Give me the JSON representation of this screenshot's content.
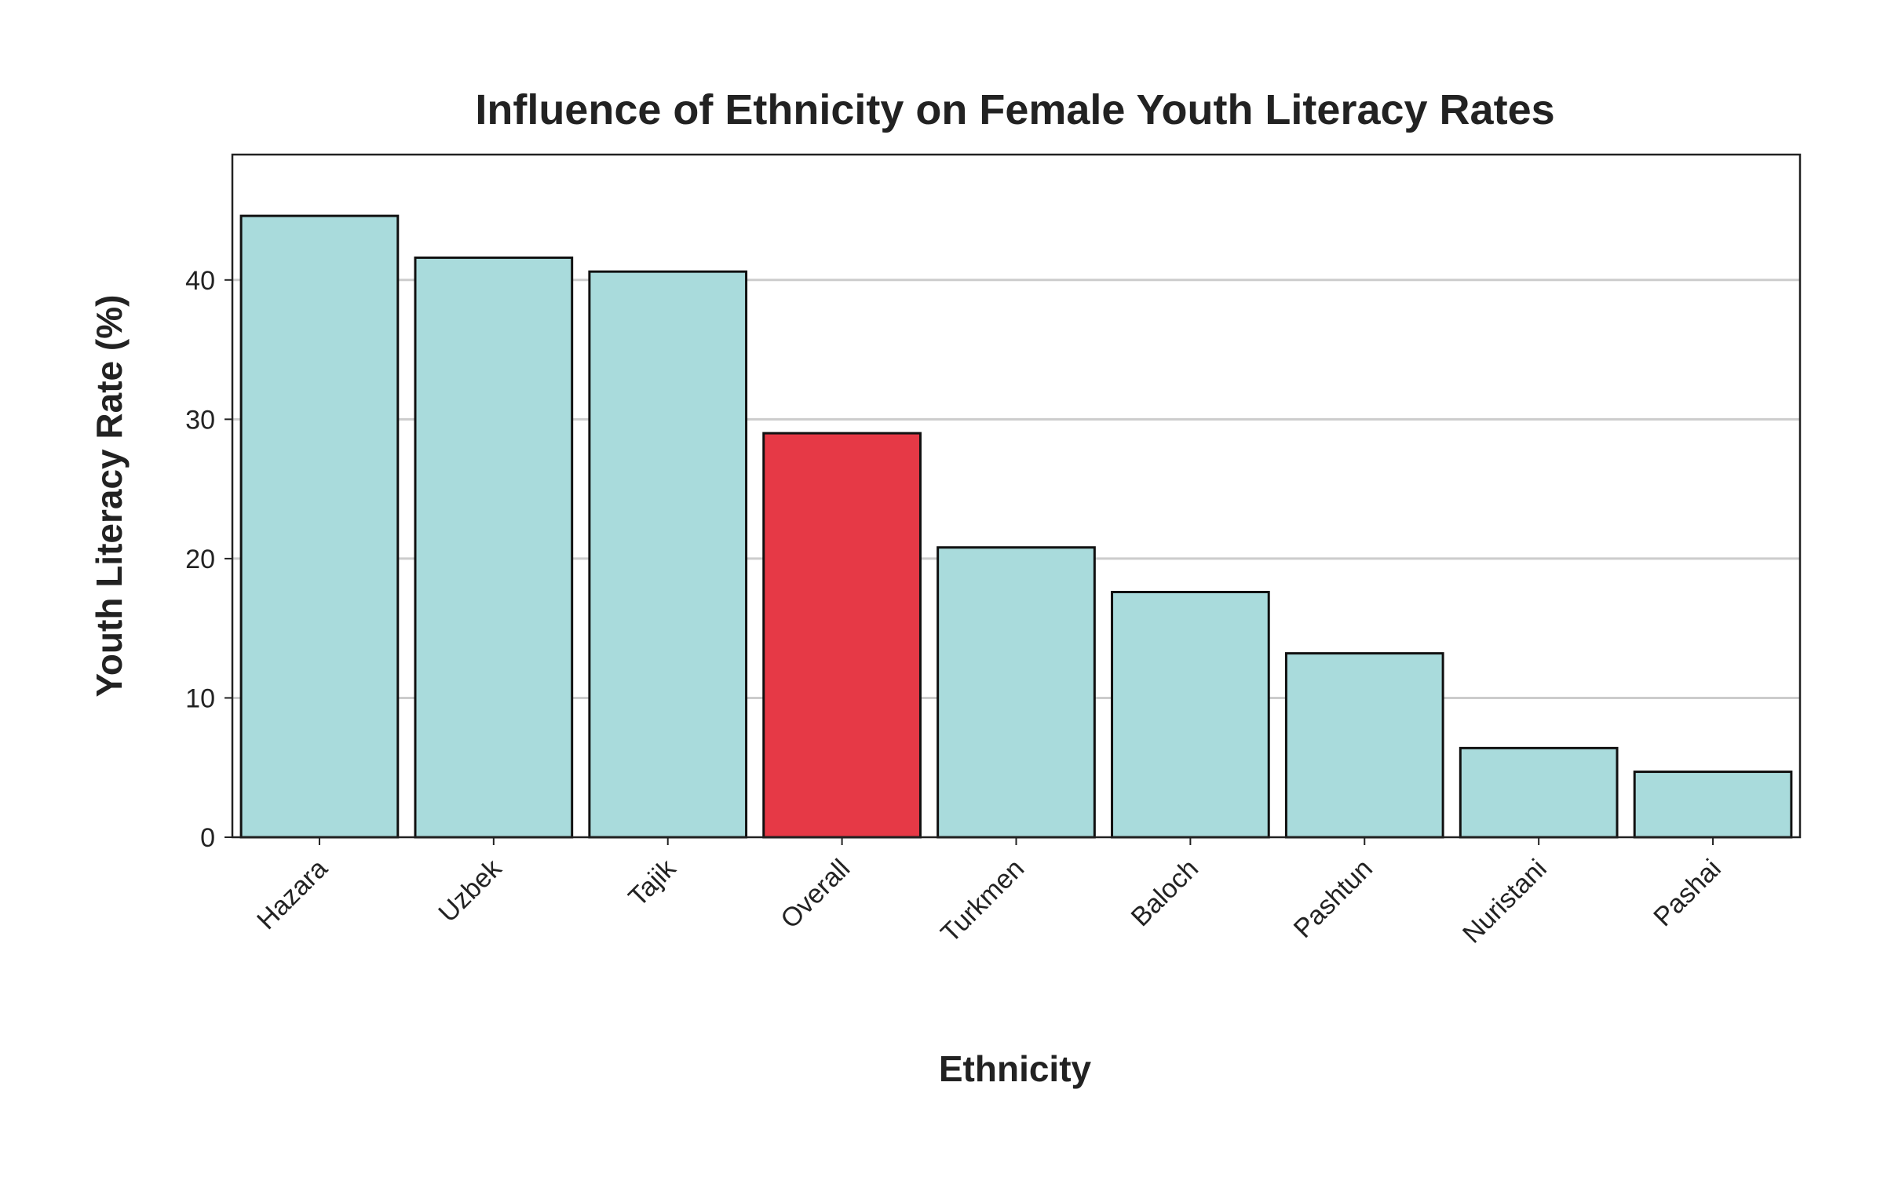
{
  "chart_data": {
    "type": "bar",
    "title": "Influence of Ethnicity on Female Youth Literacy Rates",
    "xlabel": "Ethnicity",
    "ylabel": "Youth Literacy Rate (%)",
    "categories": [
      "Hazara",
      "Uzbek",
      "Tajik",
      "Overall",
      "Turkmen",
      "Baloch",
      "Pashtun",
      "Nuristani",
      "Pashai"
    ],
    "values": [
      44.6,
      41.6,
      40.6,
      29.0,
      20.8,
      17.6,
      13.2,
      6.4,
      4.7
    ],
    "highlight_category": "Overall",
    "ylim": [
      0,
      49
    ],
    "yticks": [
      0,
      10,
      20,
      30,
      40
    ],
    "grid": true,
    "colors": {
      "bar": "#a9dbdc",
      "highlight": "#e63946",
      "outline": "#111111",
      "grid": "#cccccc",
      "panel_border": "#222222"
    }
  }
}
